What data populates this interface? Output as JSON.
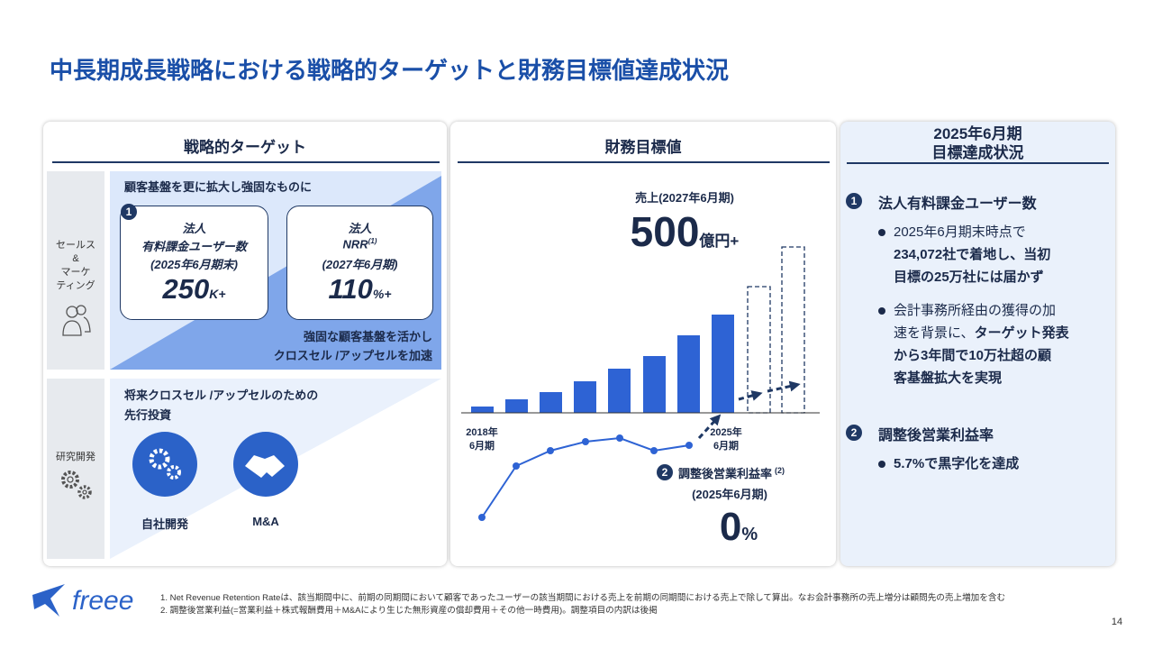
{
  "title": "中長期成長戦略における戦略的ターゲットと財務目標値達成状況",
  "strategy": {
    "heading": "戦略的ターゲット",
    "sales": {
      "label": [
        "セールス",
        "&",
        "マーケ",
        "ティング"
      ],
      "headline": "顧客基盤を更に拡大し強固なものに",
      "badge": "1",
      "cards": [
        {
          "lines": [
            "法人",
            "有料課金ユーザー数",
            "(2025年6月期末)"
          ],
          "value": "250",
          "unit": "K+"
        },
        {
          "lines": [
            "法人",
            "NRR",
            "(2027年6月期)"
          ],
          "note": "(1)",
          "value": "110",
          "unit": "%+"
        }
      ],
      "tagline": [
        "強固な顧客基盤を活かし",
        "クロスセル /アップセルを加速"
      ]
    },
    "rnd": {
      "label": "研究開発",
      "headline": [
        "将来クロスセル /アップセルのための",
        "先行投資"
      ],
      "items": [
        "自社開発",
        "M&A"
      ]
    }
  },
  "financial": {
    "heading": "財務目標値",
    "revenue": {
      "label": "売上(2027年6月期)",
      "value": "500",
      "unit": "億円+"
    },
    "start_label": [
      "2018年",
      "6月期"
    ],
    "end_label": [
      "2025年",
      "6月期"
    ],
    "margin": {
      "badge": "2",
      "label": "調整後営業利益率",
      "note": "(2)",
      "period": "(2025年6月期)",
      "value": "0",
      "unit": "%"
    }
  },
  "status": {
    "heading": [
      "2025年6月期",
      "目標達成状況"
    ],
    "sections": [
      {
        "badge": "1",
        "title": "法人有料課金ユーザー数",
        "bullets": [
          [
            [
              {
                "text": "2025年6月期末時点で",
                "bold": false
              }
            ],
            [
              {
                "text": "234,072社で着地し、当初",
                "bold": true
              }
            ],
            [
              {
                "text": "目標の25万社には届かず",
                "bold": true
              }
            ]
          ],
          [
            [
              {
                "text": "会計事務所経由の獲得の加",
                "bold": false
              }
            ],
            [
              {
                "text": "速を背景に、",
                "bold": false
              },
              {
                "text": "ターゲット発表",
                "bold": true
              }
            ],
            [
              {
                "text": "から3年間で10万社超の顧",
                "bold": true
              }
            ],
            [
              {
                "text": "客基盤拡大を実現",
                "bold": true
              }
            ]
          ]
        ]
      },
      {
        "badge": "2",
        "title": "調整後営業利益率",
        "bullets": [
          [
            [
              {
                "text": "5.7%で黒字化を達成",
                "bold": true
              }
            ]
          ]
        ]
      }
    ]
  },
  "footer": {
    "logo": "freee",
    "notes": [
      "1.  Net Revenue Retention Rateは、該当期間中に、前期の同期間において顧客であったユーザーの該当期間における売上を前期の同期間における売上で除して算出。なお会計事務所の売上増分は顧問先の売上増加を含む",
      "2.  調整後営業利益(=営業利益＋株式報酬費用＋M&Aにより生じた無形資産の償却費用＋その他一時費用)。調整項目の内訳は後掲"
    ],
    "page": "14"
  }
}
